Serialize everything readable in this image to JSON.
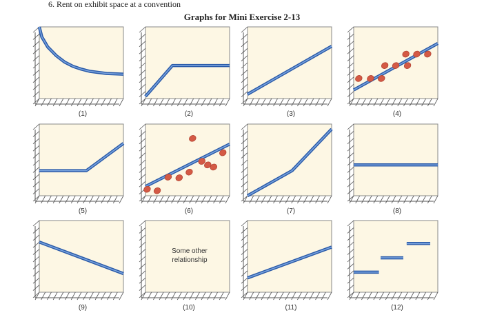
{
  "header": {
    "cut_text": "6.  Rent on exhibit space at a convention",
    "title": "Graphs for Mini Exercise 2-13"
  },
  "colors": {
    "panel_bg": "#fdf7e4",
    "line": "#3a70c0",
    "point": "#d45a45",
    "axis": "#555555"
  },
  "chart_data": [
    {
      "label": "(1)",
      "type": "line",
      "lines": [
        [
          [
            0,
            10
          ],
          [
            0.3,
            8.6
          ],
          [
            1,
            7.2
          ],
          [
            2,
            6
          ],
          [
            3,
            5.1
          ],
          [
            4,
            4.5
          ],
          [
            5,
            4.1
          ],
          [
            6,
            3.8
          ],
          [
            8,
            3.5
          ],
          [
            10,
            3.4
          ]
        ]
      ],
      "points": []
    },
    {
      "label": "(2)",
      "type": "line",
      "lines": [
        [
          [
            0,
            0.3
          ],
          [
            3.2,
            4.6
          ],
          [
            10,
            4.6
          ]
        ]
      ],
      "points": []
    },
    {
      "label": "(3)",
      "type": "line",
      "lines": [
        [
          [
            0,
            0.6
          ],
          [
            10,
            7.3
          ]
        ]
      ],
      "points": []
    },
    {
      "label": "(4)",
      "type": "scatter",
      "lines": [
        [
          [
            0,
            1.2
          ],
          [
            10,
            7.7
          ]
        ]
      ],
      "points": [
        [
          0.6,
          2.8
        ],
        [
          2,
          2.8
        ],
        [
          3.3,
          2.8
        ],
        [
          3.7,
          4.6
        ],
        [
          5,
          4.6
        ],
        [
          6.2,
          6.2
        ],
        [
          6.4,
          4.6
        ],
        [
          7.5,
          6.2
        ],
        [
          8.8,
          6.2
        ]
      ]
    },
    {
      "label": "(5)",
      "type": "line",
      "lines": [
        [
          [
            0,
            3.5
          ],
          [
            5.6,
            3.5
          ],
          [
            10,
            7.3
          ]
        ]
      ],
      "points": []
    },
    {
      "label": "(6)",
      "type": "scatter",
      "lines": [
        [
          [
            0,
            1.3
          ],
          [
            10,
            7.2
          ]
        ]
      ],
      "points": [
        [
          0.2,
          0.9
        ],
        [
          1.4,
          0.7
        ],
        [
          2.7,
          2.6
        ],
        [
          4,
          2.5
        ],
        [
          5.2,
          3.3
        ],
        [
          5.6,
          8
        ],
        [
          6.7,
          4.8
        ],
        [
          7.4,
          4.3
        ],
        [
          8.1,
          4
        ],
        [
          9.2,
          6
        ]
      ]
    },
    {
      "label": "(7)",
      "type": "line",
      "lines": [
        [
          [
            0,
            0
          ],
          [
            5.3,
            3.5
          ],
          [
            10,
            9.3
          ]
        ]
      ],
      "points": []
    },
    {
      "label": "(8)",
      "type": "line",
      "lines": [
        [
          [
            0,
            4.3
          ],
          [
            10,
            4.3
          ]
        ]
      ],
      "points": []
    },
    {
      "label": "(9)",
      "type": "line",
      "lines": [
        [
          [
            0,
            7
          ],
          [
            10,
            2.6
          ]
        ]
      ],
      "points": []
    },
    {
      "label": "(10)",
      "type": "text",
      "text_line1": "Some other",
      "text_line2": "relationship",
      "lines": [],
      "points": []
    },
    {
      "label": "(11)",
      "type": "line",
      "lines": [
        [
          [
            0,
            2
          ],
          [
            10,
            6.3
          ]
        ]
      ],
      "points": []
    },
    {
      "label": "(12)",
      "type": "step",
      "lines": [
        [
          [
            0,
            2.8
          ],
          [
            3,
            2.8
          ]
        ],
        [
          [
            3.2,
            4.8
          ],
          [
            5.9,
            4.8
          ]
        ],
        [
          [
            6.3,
            6.8
          ],
          [
            9.1,
            6.8
          ]
        ]
      ],
      "points": []
    }
  ]
}
